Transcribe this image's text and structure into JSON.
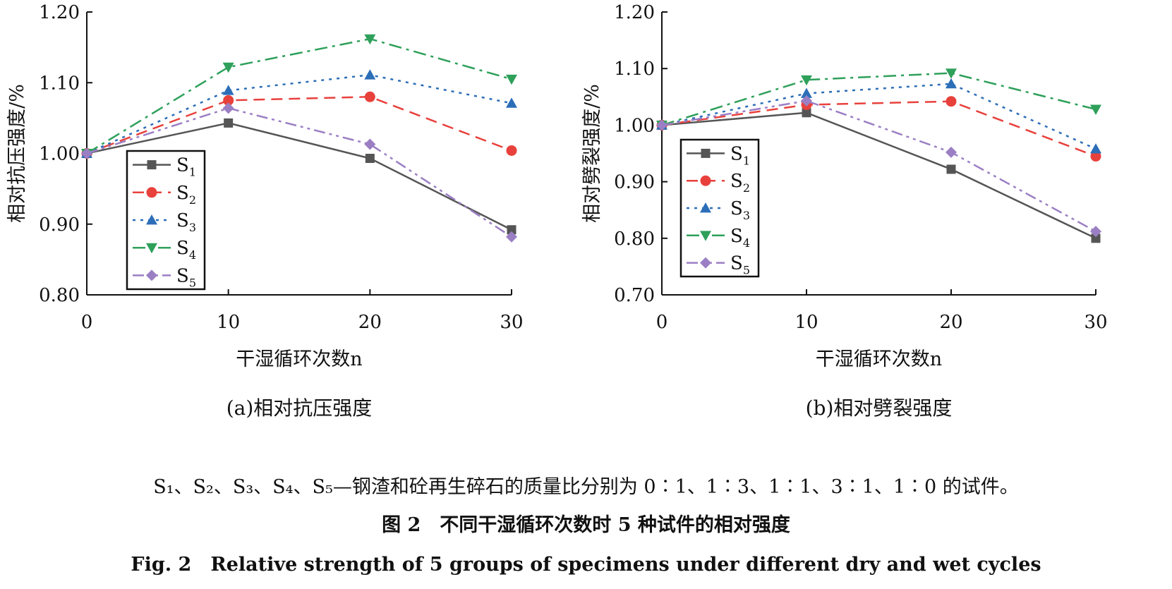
{
  "chart_data": [
    {
      "type": "line",
      "subtitle": "(a)相对抗压强度",
      "xlabel": "干湿循环次数n",
      "ylabel": "相对抗压强度/%",
      "x": [
        0,
        10,
        20,
        30
      ],
      "xticks": [
        "0",
        "10",
        "20",
        "30"
      ],
      "ylim": [
        0.8,
        1.2
      ],
      "yticks": [
        "0.80",
        "0.90",
        "1.00",
        "1.10",
        "1.20"
      ],
      "legend": "bottom-left",
      "series": [
        {
          "name": "S",
          "sub": "1",
          "values": [
            1.0,
            1.043,
            0.993,
            0.892
          ],
          "color": "#555555",
          "marker": "square",
          "dash": "solid"
        },
        {
          "name": "S",
          "sub": "2",
          "values": [
            1.0,
            1.075,
            1.08,
            1.004
          ],
          "color": "#e8413c",
          "marker": "circle",
          "dash": "dashed"
        },
        {
          "name": "S",
          "sub": "3",
          "values": [
            1.0,
            1.089,
            1.111,
            1.071
          ],
          "color": "#2c6eb8",
          "marker": "triangle-up",
          "dash": "dotted"
        },
        {
          "name": "S",
          "sub": "4",
          "values": [
            1.0,
            1.122,
            1.162,
            1.105
          ],
          "color": "#2ea05a",
          "marker": "triangle-down",
          "dash": "dash-dot"
        },
        {
          "name": "S",
          "sub": "5",
          "values": [
            1.0,
            1.064,
            1.013,
            0.882
          ],
          "color": "#9b7fc4",
          "marker": "diamond",
          "dash": "dash-dot-dot"
        }
      ]
    },
    {
      "type": "line",
      "subtitle": "(b)相对劈裂强度",
      "xlabel": "干湿循环次数n",
      "ylabel": "相对劈裂强度/%",
      "x": [
        0,
        10,
        20,
        30
      ],
      "xticks": [
        "0",
        "10",
        "20",
        "30"
      ],
      "ylim": [
        0.7,
        1.2
      ],
      "yticks": [
        "0.70",
        "0.80",
        "0.90",
        "1.00",
        "1.10",
        "1.20"
      ],
      "legend": "bottom-left",
      "series": [
        {
          "name": "S",
          "sub": "1",
          "values": [
            1.0,
            1.022,
            0.922,
            0.8
          ],
          "color": "#555555",
          "marker": "square",
          "dash": "solid"
        },
        {
          "name": "S",
          "sub": "2",
          "values": [
            1.0,
            1.036,
            1.042,
            0.945
          ],
          "color": "#e8413c",
          "marker": "circle",
          "dash": "dashed"
        },
        {
          "name": "S",
          "sub": "3",
          "values": [
            1.0,
            1.056,
            1.073,
            0.958
          ],
          "color": "#2c6eb8",
          "marker": "triangle-up",
          "dash": "dotted"
        },
        {
          "name": "S",
          "sub": "4",
          "values": [
            1.0,
            1.08,
            1.092,
            1.028
          ],
          "color": "#2ea05a",
          "marker": "triangle-down",
          "dash": "dash-dot"
        },
        {
          "name": "S",
          "sub": "5",
          "values": [
            1.0,
            1.043,
            0.952,
            0.812
          ],
          "color": "#9b7fc4",
          "marker": "diamond",
          "dash": "dash-dot-dot"
        }
      ]
    }
  ],
  "caption": {
    "note": "S₁、S₂、S₃、S₄、S₅—钢渣和砼再生碎石的质量比分别为 0∶1、1∶3、1∶1、3∶1、1∶0 的试件。",
    "title_cn": "图 2　不同干湿循环次数时 5 种试件的相对强度",
    "title_en": "Fig. 2　Relative strength of 5 groups of specimens under different dry and wet cycles"
  }
}
